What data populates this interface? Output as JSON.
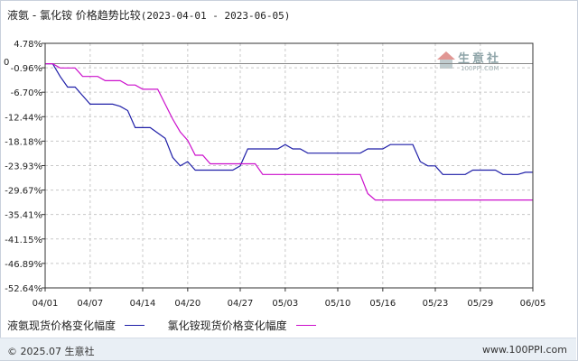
{
  "title": {
    "main": "液氨 - 氯化铵 价格趋势比较",
    "range": "(2023-04-01 - 2023-06-05)"
  },
  "zero_label": "0",
  "legend": {
    "series1": "液氨现货价格变化幅度",
    "series2": "氯化铵现货价格变化幅度"
  },
  "footer": {
    "copyright": "© 2025.07 生意社",
    "site": "www.100PPI.com"
  },
  "watermark": {
    "text": "生意社",
    "url": "100PPI.COM"
  },
  "colors": {
    "series1": "#1f1fa8",
    "series2": "#cc10cc",
    "axis": "#333333",
    "grid": "#c8c8c8"
  },
  "chart_data": {
    "type": "line",
    "x_labels": [
      "04/01",
      "04/07",
      "04/14",
      "04/20",
      "04/27",
      "05/03",
      "05/10",
      "05/16",
      "05/23",
      "05/29",
      "06/05"
    ],
    "x_tick_days": [
      0,
      6,
      13,
      19,
      26,
      32,
      39,
      45,
      52,
      58,
      65
    ],
    "y_ticks": [
      4.78,
      -0.96,
      -6.7,
      -12.44,
      -18.18,
      -23.93,
      -29.67,
      -35.41,
      -41.15,
      -46.89,
      -52.64
    ],
    "y_tick_labels": [
      "4.78%",
      "-0.96%",
      "-6.70%",
      "-12.44%",
      "-18.18%",
      "-23.93%",
      "-29.67%",
      "-35.41%",
      "-41.15%",
      "-46.89%",
      "-52.64%"
    ],
    "ylim": [
      -52.64,
      4.78
    ],
    "xlim": [
      0,
      65
    ],
    "series": [
      {
        "name": "液氨现货价格变化幅度",
        "x": [
          0,
          1,
          2,
          3,
          4,
          5,
          6,
          8,
          9,
          10,
          11,
          12,
          13,
          14,
          16,
          17,
          18,
          19,
          20,
          21,
          22,
          23,
          24,
          25,
          26,
          27,
          28,
          30,
          31,
          32,
          33,
          34,
          35,
          36,
          37,
          38,
          39,
          40,
          41,
          42,
          43,
          44,
          45,
          46,
          47,
          48,
          49,
          50,
          51,
          52,
          53,
          54,
          55,
          56,
          57,
          58,
          59,
          60,
          61,
          62,
          63,
          64,
          65
        ],
        "y": [
          0,
          0,
          -3.0,
          -5.5,
          -5.5,
          -7.5,
          -9.5,
          -9.5,
          -9.5,
          -10.0,
          -11.0,
          -15.0,
          -15.0,
          -15.0,
          -17.5,
          -22.0,
          -24.0,
          -23.0,
          -25.0,
          -25.0,
          -25.0,
          -25.0,
          -25.0,
          -25.0,
          -24.0,
          -20.0,
          -20.0,
          -20.0,
          -20.0,
          -19.0,
          -20.0,
          -20.0,
          -21.0,
          -21.0,
          -21.0,
          -21.0,
          -21.0,
          -21.0,
          -21.0,
          -21.0,
          -20.0,
          -20.0,
          -20.0,
          -19.0,
          -19.0,
          -19.0,
          -19.0,
          -23.0,
          -24.0,
          -24.0,
          -26.0,
          -26.0,
          -26.0,
          -26.0,
          -25.0,
          -25.0,
          -25.0,
          -25.0,
          -26.0,
          -26.0,
          -26.0,
          -25.5,
          -25.5
        ]
      },
      {
        "name": "氯化铵现货价格变化幅度",
        "x": [
          0,
          1,
          2,
          3,
          4,
          5,
          6,
          7,
          8,
          9,
          10,
          11,
          12,
          13,
          14,
          15,
          16,
          17,
          18,
          19,
          20,
          21,
          22,
          23,
          24,
          25,
          26,
          27,
          28,
          29,
          30,
          31,
          32,
          33,
          34,
          35,
          36,
          37,
          38,
          39,
          40,
          41,
          42,
          43,
          44,
          45,
          46,
          47,
          48,
          49,
          50,
          51,
          52,
          53,
          54,
          55,
          56,
          57,
          58,
          59,
          60,
          61,
          62,
          63,
          64,
          65
        ],
        "y": [
          0,
          0,
          -1.0,
          -1.0,
          -1.0,
          -3.0,
          -3.0,
          -3.0,
          -4.0,
          -4.0,
          -4.0,
          -5.0,
          -5.0,
          -6.0,
          -6.0,
          -6.0,
          -9.5,
          -13.0,
          -16.0,
          -18.0,
          -21.5,
          -21.5,
          -23.5,
          -23.5,
          -23.5,
          -23.5,
          -23.5,
          -23.5,
          -23.5,
          -26.0,
          -26.0,
          -26.0,
          -26.0,
          -26.0,
          -26.0,
          -26.0,
          -26.0,
          -26.0,
          -26.0,
          -26.0,
          -26.0,
          -26.0,
          -26.0,
          -30.5,
          -32.0,
          -32.0,
          -32.0,
          -32.0,
          -32.0,
          -32.0,
          -32.0,
          -32.0,
          -32.0,
          -32.0,
          -32.0,
          -32.0,
          -32.0,
          -32.0,
          -32.0,
          -32.0,
          -32.0,
          -32.0,
          -32.0,
          -32.0,
          -32.0,
          -32.0
        ]
      }
    ],
    "grid": true,
    "legend_position": "bottom-left"
  }
}
